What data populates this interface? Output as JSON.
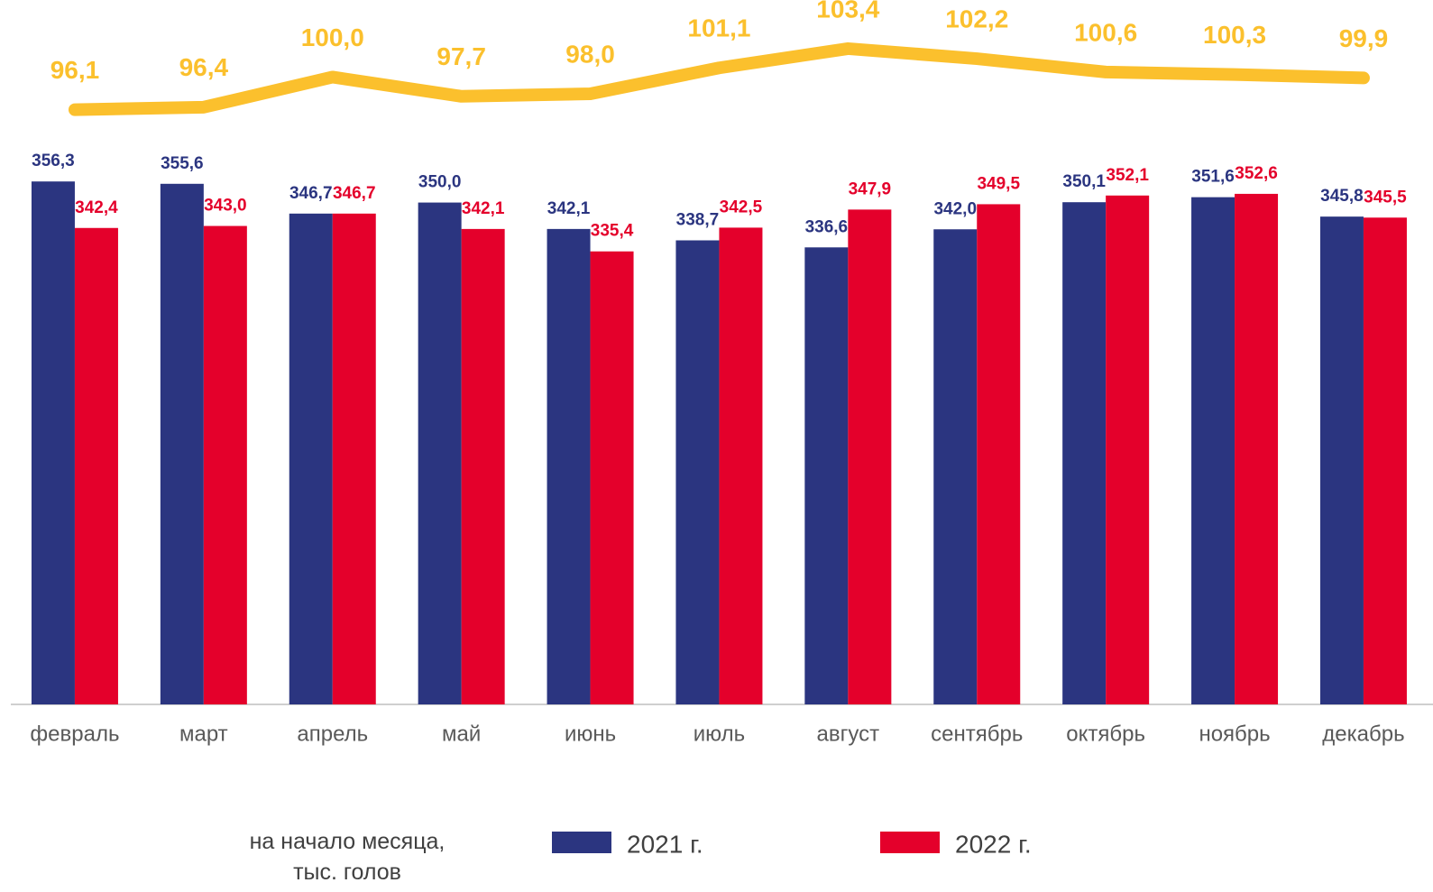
{
  "chart_data": {
    "type": "bar",
    "note": "на начало месяца, тыс. голов",
    "categories": [
      "февраль",
      "март",
      "апрель",
      "май",
      "июнь",
      "июль",
      "август",
      "сентябрь",
      "октябрь",
      "ноябрь",
      "декабрь"
    ],
    "ylim": [
      200,
      410
    ],
    "y2lim": [
      25,
      109
    ],
    "series": [
      {
        "name": "2021 г.",
        "color": "#2b3580",
        "values": [
          356.3,
          355.6,
          346.7,
          350.0,
          342.1,
          338.7,
          336.6,
          342.0,
          350.1,
          351.6,
          345.8
        ],
        "value_labels": [
          "356,3",
          "355,6",
          "346,7",
          "350,0",
          "342,1",
          "338,7",
          "336,6",
          "342,0",
          "350,1",
          "351,6",
          "345,8"
        ]
      },
      {
        "name": "2022 г.",
        "color": "#e4002b",
        "values": [
          342.4,
          343.0,
          346.7,
          342.1,
          335.4,
          342.5,
          347.9,
          349.5,
          352.1,
          352.6,
          345.5
        ],
        "value_labels": [
          "342,4",
          "343,0",
          "346,7",
          "342,1",
          "335,4",
          "342,5",
          "347,9",
          "349,5",
          "352,1",
          "352,6",
          "345,5"
        ]
      },
      {
        "type": "line",
        "axis": "y2",
        "color": "#fbc02d",
        "values": [
          96.1,
          96.4,
          100.0,
          97.7,
          98.0,
          101.1,
          103.4,
          102.2,
          100.6,
          100.3,
          99.9
        ],
        "value_labels": [
          "96,1",
          "96,4",
          "100,0",
          "97,7",
          "98,0",
          "101,1",
          "103,4",
          "102,2",
          "100,6",
          "100,3",
          "99,9"
        ]
      }
    ]
  }
}
